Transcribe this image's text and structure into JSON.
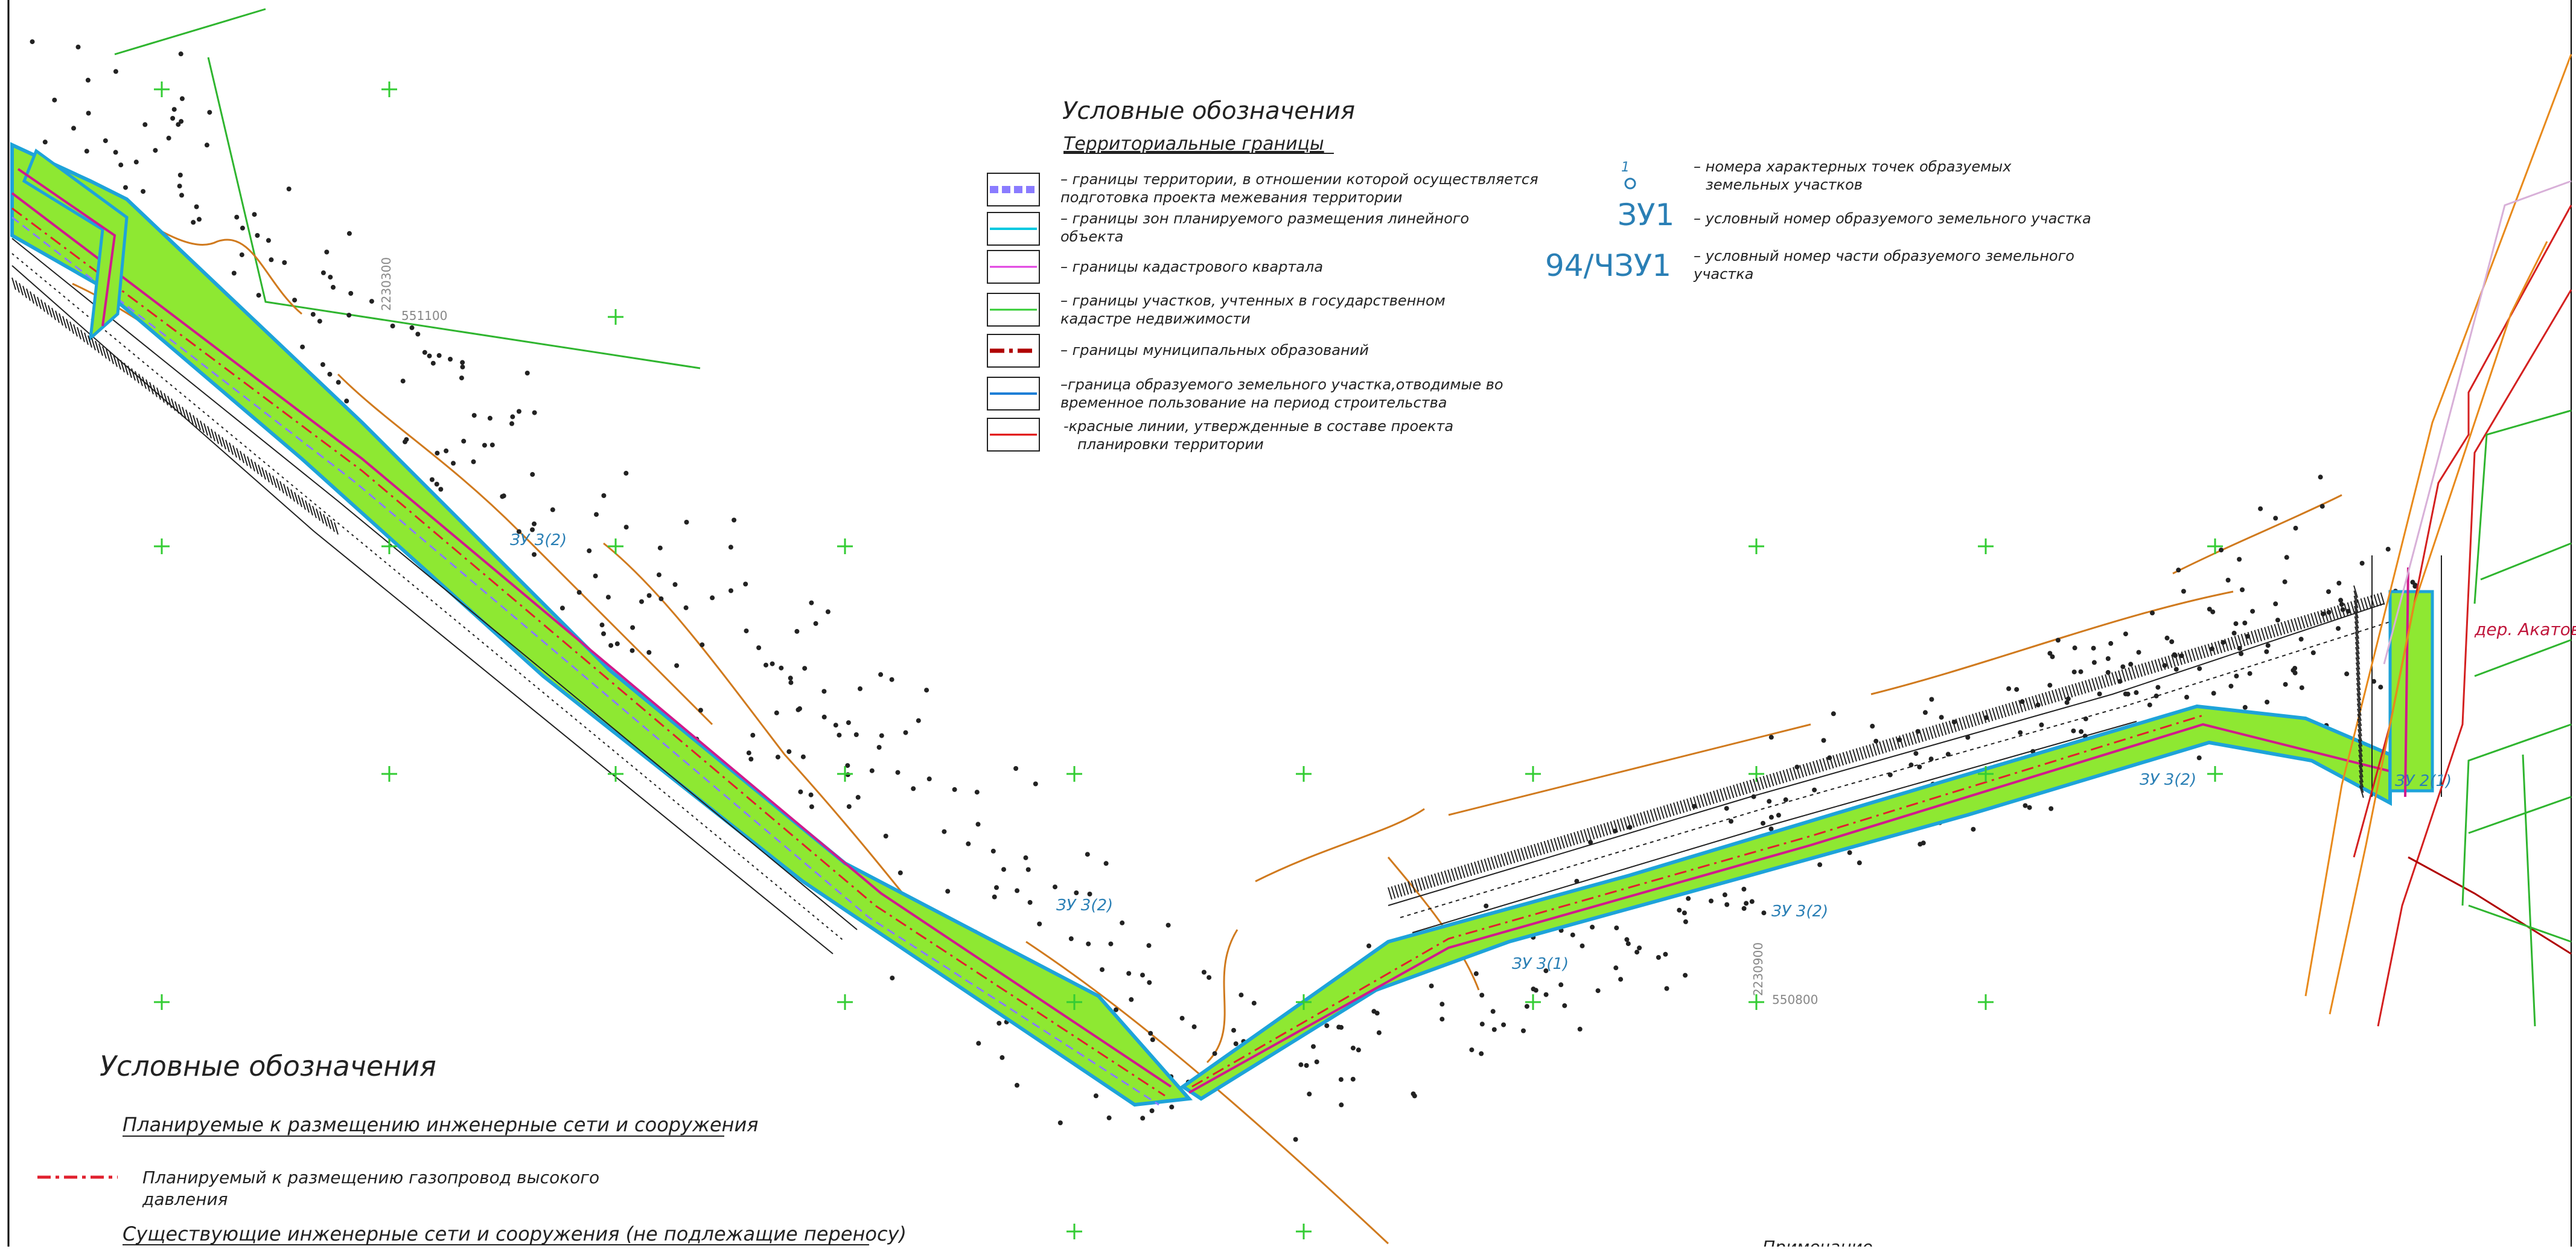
{
  "legend_top": {
    "title": "Условные обозначения",
    "subtitle": "Территориальные границы",
    "items": [
      {
        "text": "– границы территории, в отношении которой осуществляется",
        "text2": "подготовка проекта межевания территории",
        "color": "#8a7bff"
      },
      {
        "text": "– границы зон планируемого размещения линейного",
        "text2": "объекта",
        "color": "#00c8e0"
      },
      {
        "text": "– границы кадастрового квартала",
        "text2": "",
        "color": "#e040e0"
      },
      {
        "text": "– границы участков, учтенных в государственном",
        "text2": "кадастре недвижимости",
        "color": "#33cc33"
      },
      {
        "text": "– границы муниципальных образований",
        "text2": "",
        "color": "#b00000"
      },
      {
        "text": "–граница образуемого земельного участка,отводимые во",
        "text2": "временное пользование на период строительства",
        "color": "#1e7fd6"
      },
      {
        "text": "-красные линии, утвержденные в составе проекта",
        "text2": "планировки территории",
        "color": "#e00000"
      }
    ]
  },
  "legend_points": [
    {
      "symbol": "1",
      "text": "– номера характерных точек образуемых",
      "text2": "земельных участков"
    },
    {
      "symbol": "ЗУ1",
      "text": "– условный номер образуемого земельного участка",
      "text2": ""
    },
    {
      "symbol": "94/ЧЗУ1",
      "text": "– условный номер части образуемого земельного",
      "text2": "участка"
    }
  ],
  "legend_bottom": {
    "title": "Условные обозначения",
    "planned_header": "Планируемые к размещению инженерные сети и сооружения",
    "gas_text": "Планируемый к размещению газопровод высокого",
    "gas_text2": "давления",
    "existing_header": "Существующие инженерные сети и сооружения (не подлежащие переносу)",
    "note_cut": "Примечание"
  },
  "map": {
    "village": "дер. Акатово",
    "coord_labels": [
      "551100",
      "550800",
      "2230300",
      "2230900"
    ],
    "plot_labels": [
      "ЗУ 3(2)",
      "ЗУ 3(2)",
      "ЗУ 3(2)",
      "ЗУ 3(1)",
      "ЗУ 3(2)",
      "ЗУ 2(1)"
    ],
    "colors": {
      "corridor_fill": "#8ee832",
      "corridor_edge": "#1ea3d9",
      "cadastral": "#2fb52f",
      "contour": "#d07a1e",
      "redline": "#d42020",
      "gas": "#e0202e",
      "magenta": "#d01a8c"
    }
  }
}
